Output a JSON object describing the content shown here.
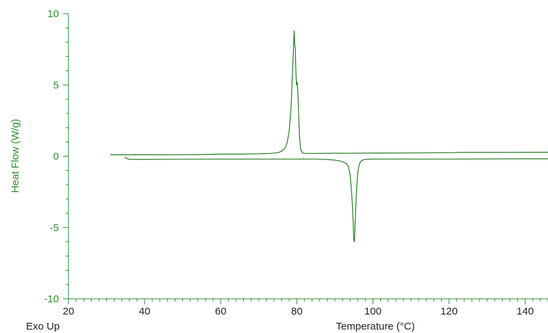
{
  "chart_data": {
    "type": "line",
    "title": "",
    "xlabel": "Temperature (°C)",
    "ylabel": "Heat Flow (W/g)",
    "corner_label": "Exo Up",
    "xlim": [
      20,
      146
    ],
    "ylim": [
      -10,
      10
    ],
    "x_ticks": [
      20,
      40,
      60,
      80,
      100,
      120,
      140
    ],
    "y_ticks": [
      -10,
      -5,
      0,
      5,
      10
    ],
    "grid": false,
    "colors": {
      "line": "#1f7a1f",
      "axis": "#2e8b2e",
      "ylabel": "#2e8b2e",
      "text": "#222222"
    },
    "series": [
      {
        "x": [
          31,
          45,
          55,
          60,
          65,
          70,
          73,
          75,
          76,
          77,
          77.5,
          78,
          78.5,
          78.8,
          79.1,
          79.3,
          79.45,
          79.6,
          79.75,
          79.9,
          80.1,
          80.3,
          80.5,
          80.7,
          81.0,
          81.5,
          82.5,
          85,
          90,
          100,
          110,
          120,
          123,
          130,
          146
        ],
        "y": [
          0.1,
          0.1,
          0.12,
          0.15,
          0.15,
          0.17,
          0.2,
          0.25,
          0.35,
          0.6,
          1.0,
          1.8,
          3.5,
          5.5,
          7.4,
          8.8,
          7.8,
          7.6,
          6.0,
          5.0,
          5.2,
          4.3,
          2.8,
          1.4,
          0.5,
          0.22,
          0.2,
          0.2,
          0.21,
          0.22,
          0.23,
          0.25,
          0.27,
          0.27,
          0.28
        ]
      },
      {
        "x": [
          146,
          140,
          130,
          120,
          110,
          100,
          98,
          97.5,
          97,
          96.6,
          96.3,
          96.0,
          95.7,
          95.5,
          95.3,
          95.2,
          95.1,
          95.0,
          94.9,
          94.8,
          94.6,
          94.3,
          94.0,
          93.5,
          93,
          92,
          91,
          90,
          88,
          85,
          80,
          60,
          40,
          36,
          35.2,
          34.8
        ],
        "y": [
          -0.18,
          -0.18,
          -0.19,
          -0.2,
          -0.2,
          -0.2,
          -0.22,
          -0.25,
          -0.32,
          -0.45,
          -0.7,
          -1.2,
          -2.3,
          -3.5,
          -4.8,
          -5.6,
          -6.0,
          -5.9,
          -5.4,
          -4.6,
          -3.4,
          -2.2,
          -1.3,
          -0.7,
          -0.5,
          -0.38,
          -0.32,
          -0.27,
          -0.23,
          -0.2,
          -0.2,
          -0.2,
          -0.22,
          -0.22,
          -0.15,
          -0.05
        ]
      }
    ]
  }
}
